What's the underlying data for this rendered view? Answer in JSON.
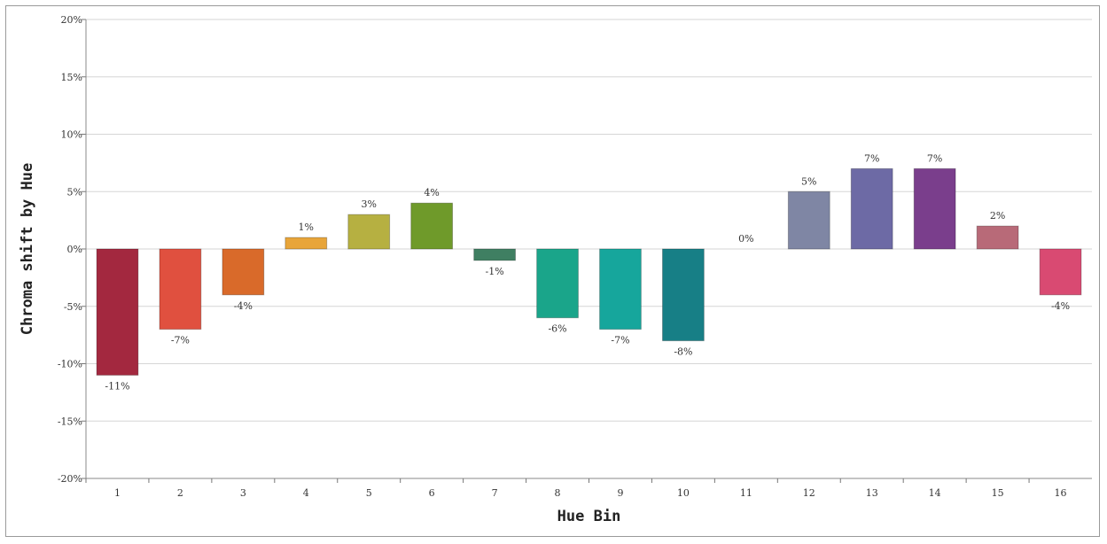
{
  "chart_data": {
    "type": "bar",
    "title": "",
    "xlabel": "Hue Bin",
    "ylabel": "Chroma shift by Hue",
    "categories": [
      "1",
      "2",
      "3",
      "4",
      "5",
      "6",
      "7",
      "8",
      "9",
      "10",
      "11",
      "12",
      "13",
      "14",
      "15",
      "16"
    ],
    "values": [
      -11,
      -7,
      -4,
      1,
      3,
      4,
      -1,
      -6,
      -7,
      -8,
      0,
      5,
      7,
      7,
      2,
      -4
    ],
    "data_labels": [
      "-11%",
      "-7%",
      "-4%",
      "1%",
      "3%",
      "4%",
      "-1%",
      "-6%",
      "-7%",
      "-8%",
      "0%",
      "5%",
      "7%",
      "7%",
      "2%",
      "-4%"
    ],
    "colors": [
      "#a3283f",
      "#e0503f",
      "#d96a2a",
      "#e8a53a",
      "#b6b041",
      "#6f9a2a",
      "#3f7f62",
      "#1aa58a",
      "#16a69c",
      "#177f86",
      "#9aa2c4",
      "#7f86a4",
      "#6d6aa5",
      "#7a3e8c",
      "#b86a78",
      "#d94a72"
    ],
    "y_ticks": [
      -20,
      -15,
      -10,
      -5,
      0,
      5,
      10,
      15,
      20
    ],
    "y_tick_labels": [
      "-20%",
      "-15%",
      "-10%",
      "-5%",
      "0%",
      "5%",
      "10%",
      "15%",
      "20%"
    ],
    "ylim": [
      -20,
      20
    ],
    "grid": true,
    "legend": "none"
  }
}
